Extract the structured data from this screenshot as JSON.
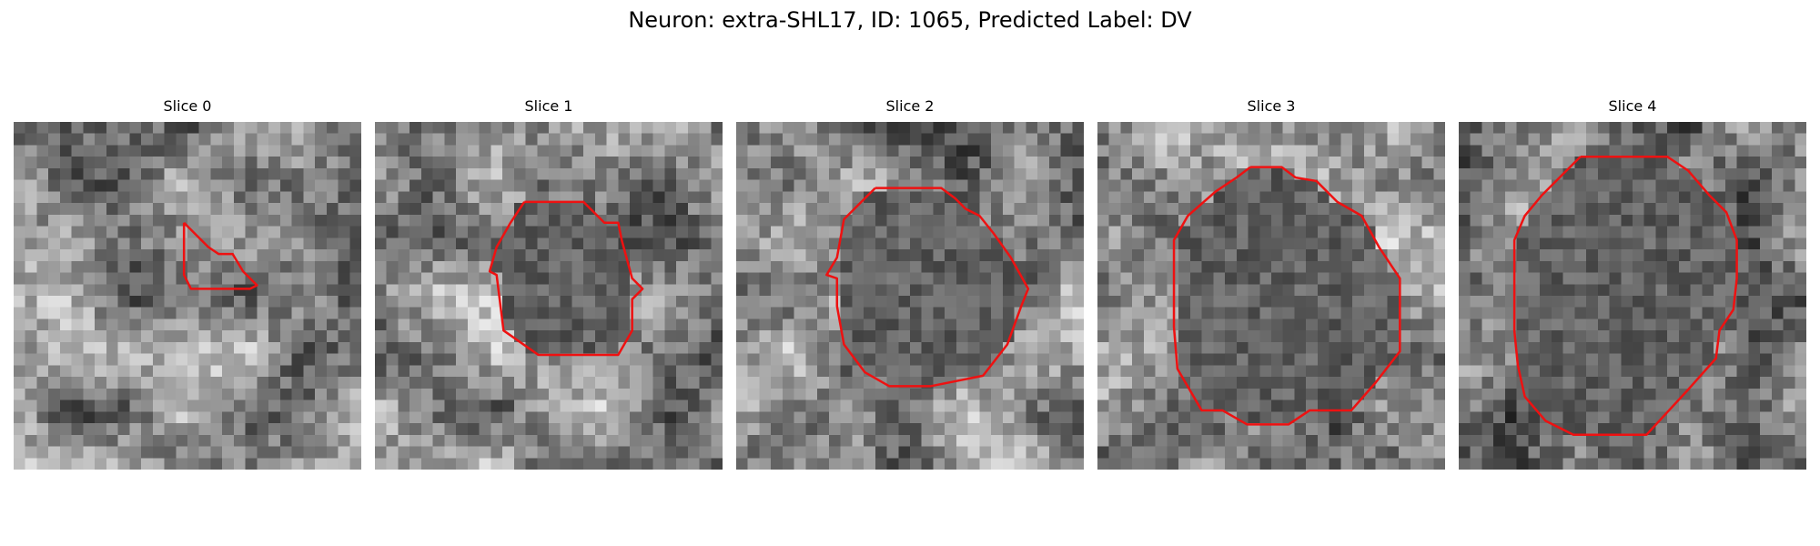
{
  "title": "Neuron: extra-SHL17, ID: 1065, Predicted Label: DV",
  "contour_color": "#ee1111",
  "panels": [
    {
      "label": "Slice 0",
      "seed": 11,
      "contour": [
        [
          0.49,
          0.29
        ],
        [
          0.52,
          0.32
        ],
        [
          0.56,
          0.36
        ],
        [
          0.59,
          0.38
        ],
        [
          0.63,
          0.38
        ],
        [
          0.66,
          0.43
        ],
        [
          0.7,
          0.47
        ],
        [
          0.68,
          0.48
        ],
        [
          0.62,
          0.48
        ],
        [
          0.51,
          0.48
        ],
        [
          0.49,
          0.44
        ],
        [
          0.49,
          0.29
        ]
      ]
    },
    {
      "label": "Slice 1",
      "seed": 23,
      "contour": [
        [
          0.43,
          0.23
        ],
        [
          0.6,
          0.23
        ],
        [
          0.66,
          0.29
        ],
        [
          0.7,
          0.29
        ],
        [
          0.71,
          0.34
        ],
        [
          0.74,
          0.45
        ],
        [
          0.77,
          0.48
        ],
        [
          0.74,
          0.51
        ],
        [
          0.74,
          0.6
        ],
        [
          0.7,
          0.67
        ],
        [
          0.66,
          0.67
        ],
        [
          0.47,
          0.67
        ],
        [
          0.37,
          0.6
        ],
        [
          0.35,
          0.44
        ],
        [
          0.33,
          0.43
        ],
        [
          0.35,
          0.36
        ],
        [
          0.39,
          0.29
        ],
        [
          0.43,
          0.23
        ]
      ]
    },
    {
      "label": "Slice 2",
      "seed": 37,
      "contour": [
        [
          0.4,
          0.19
        ],
        [
          0.59,
          0.19
        ],
        [
          0.63,
          0.22
        ],
        [
          0.66,
          0.25
        ],
        [
          0.7,
          0.27
        ],
        [
          0.74,
          0.32
        ],
        [
          0.79,
          0.39
        ],
        [
          0.84,
          0.48
        ],
        [
          0.82,
          0.53
        ],
        [
          0.78,
          0.64
        ],
        [
          0.71,
          0.73
        ],
        [
          0.56,
          0.76
        ],
        [
          0.44,
          0.76
        ],
        [
          0.37,
          0.72
        ],
        [
          0.31,
          0.64
        ],
        [
          0.29,
          0.53
        ],
        [
          0.29,
          0.45
        ],
        [
          0.26,
          0.44
        ],
        [
          0.29,
          0.39
        ],
        [
          0.31,
          0.28
        ],
        [
          0.36,
          0.23
        ],
        [
          0.4,
          0.19
        ]
      ]
    },
    {
      "label": "Slice 3",
      "seed": 51,
      "contour": [
        [
          0.44,
          0.13
        ],
        [
          0.53,
          0.13
        ],
        [
          0.57,
          0.16
        ],
        [
          0.63,
          0.17
        ],
        [
          0.69,
          0.23
        ],
        [
          0.76,
          0.27
        ],
        [
          0.81,
          0.36
        ],
        [
          0.87,
          0.45
        ],
        [
          0.87,
          0.66
        ],
        [
          0.8,
          0.75
        ],
        [
          0.73,
          0.83
        ],
        [
          0.61,
          0.83
        ],
        [
          0.55,
          0.87
        ],
        [
          0.43,
          0.87
        ],
        [
          0.36,
          0.83
        ],
        [
          0.3,
          0.83
        ],
        [
          0.23,
          0.71
        ],
        [
          0.22,
          0.59
        ],
        [
          0.22,
          0.34
        ],
        [
          0.26,
          0.27
        ],
        [
          0.34,
          0.2
        ],
        [
          0.4,
          0.16
        ],
        [
          0.44,
          0.13
        ]
      ]
    },
    {
      "label": "Slice 4",
      "seed": 67,
      "contour": [
        [
          0.35,
          0.1
        ],
        [
          0.6,
          0.1
        ],
        [
          0.66,
          0.14
        ],
        [
          0.72,
          0.21
        ],
        [
          0.77,
          0.26
        ],
        [
          0.8,
          0.34
        ],
        [
          0.8,
          0.45
        ],
        [
          0.79,
          0.54
        ],
        [
          0.75,
          0.6
        ],
        [
          0.74,
          0.68
        ],
        [
          0.66,
          0.77
        ],
        [
          0.54,
          0.9
        ],
        [
          0.33,
          0.9
        ],
        [
          0.25,
          0.86
        ],
        [
          0.19,
          0.79
        ],
        [
          0.17,
          0.7
        ],
        [
          0.16,
          0.6
        ],
        [
          0.16,
          0.34
        ],
        [
          0.19,
          0.27
        ],
        [
          0.24,
          0.21
        ],
        [
          0.3,
          0.15
        ],
        [
          0.35,
          0.1
        ]
      ]
    }
  ]
}
